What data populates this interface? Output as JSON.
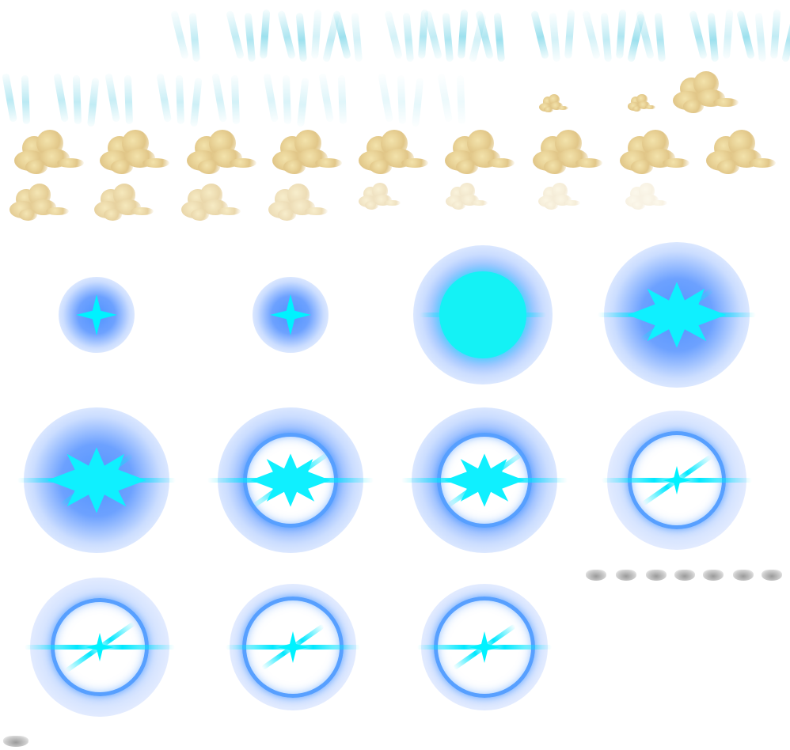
{
  "sheet": {
    "background": "#ffffff",
    "rows": [
      {
        "name": "water-splash-row-1",
        "frame_count": 13,
        "color": "#7fd8e8"
      },
      {
        "name": "water-splash-row-2",
        "frame_count": 8,
        "color": "#a8e6f0"
      },
      {
        "name": "dust-cloud-row-1",
        "frame_count": 9,
        "color": "#e6cc8a"
      },
      {
        "name": "dust-cloud-row-2",
        "frame_count": 8,
        "color": "#d9bd86"
      },
      {
        "name": "blue-orb-rows",
        "frame_count": 11,
        "color": "#1e8cff"
      },
      {
        "name": "grey-mini-sprites",
        "frame_count": 8,
        "color": "#9a9a9a"
      }
    ],
    "accent_cyan": "#00f2ff",
    "accent_blue": "#3c8cff"
  }
}
